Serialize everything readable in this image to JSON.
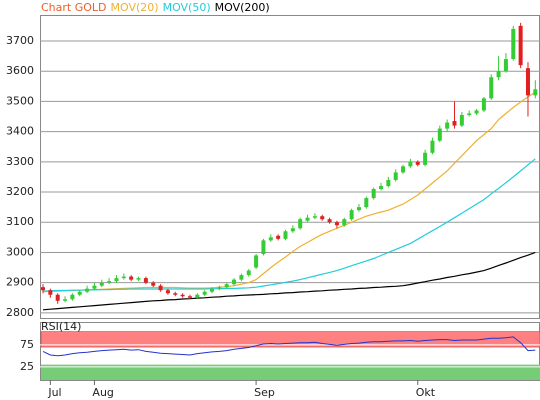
{
  "chart_data": {
    "type": "candlestick",
    "title": "Chart GOLD",
    "title_color": "#e8602c",
    "up_color": "#33cc33",
    "down_color": "#e02020",
    "categories": [
      null,
      "Jul",
      null,
      null,
      null,
      null,
      null,
      "Aug",
      null,
      null,
      null,
      null,
      null,
      null,
      null,
      null,
      null,
      null,
      null,
      null,
      null,
      null,
      null,
      null,
      null,
      null,
      null,
      null,
      null,
      "Sep",
      null,
      null,
      null,
      null,
      null,
      null,
      null,
      null,
      null,
      null,
      null,
      null,
      null,
      null,
      null,
      null,
      null,
      null,
      null,
      null,
      null,
      "Okt",
      null,
      null,
      null,
      null,
      null,
      null,
      null,
      null,
      null,
      null,
      null,
      null,
      null,
      null,
      null,
      null
    ],
    "open": [
      2885,
      2875,
      2860,
      2840,
      2845,
      2860,
      2870,
      2880,
      2890,
      2900,
      2905,
      2915,
      2920,
      2910,
      2915,
      2900,
      2890,
      2875,
      2865,
      2860,
      2855,
      2850,
      2860,
      2870,
      2880,
      2885,
      2895,
      2910,
      2925,
      2950,
      2995,
      3040,
      3055,
      3045,
      3070,
      3080,
      3105,
      3115,
      3120,
      3110,
      3100,
      3090,
      3110,
      3140,
      3150,
      3180,
      3210,
      3220,
      3240,
      3265,
      3285,
      3300,
      3290,
      3330,
      3370,
      3410,
      3435,
      3420,
      3455,
      3460,
      3470,
      3510,
      3580,
      3600,
      3640,
      3750,
      3610,
      3520
    ],
    "high": [
      2895,
      2880,
      2865,
      2855,
      2865,
      2875,
      2890,
      2900,
      2910,
      2915,
      2925,
      2930,
      2925,
      2920,
      2920,
      2905,
      2895,
      2880,
      2870,
      2865,
      2860,
      2865,
      2875,
      2885,
      2890,
      2900,
      2915,
      2930,
      2945,
      2995,
      3045,
      3060,
      3060,
      3075,
      3090,
      3115,
      3125,
      3130,
      3125,
      3115,
      3105,
      3115,
      3145,
      3160,
      3185,
      3215,
      3230,
      3250,
      3275,
      3290,
      3310,
      3305,
      3340,
      3380,
      3420,
      3440,
      3500,
      3465,
      3470,
      3475,
      3515,
      3590,
      3650,
      3660,
      3750,
      3760,
      3630,
      3570
    ],
    "low": [
      2865,
      2850,
      2830,
      2835,
      2840,
      2855,
      2865,
      2875,
      2885,
      2895,
      2900,
      2910,
      2905,
      2905,
      2895,
      2885,
      2870,
      2860,
      2855,
      2850,
      2845,
      2845,
      2855,
      2865,
      2875,
      2880,
      2890,
      2905,
      2920,
      2945,
      2990,
      3035,
      3040,
      3040,
      3065,
      3075,
      3100,
      3110,
      3105,
      3095,
      3080,
      3085,
      3105,
      3135,
      3145,
      3175,
      3205,
      3215,
      3235,
      3260,
      3280,
      3285,
      3285,
      3325,
      3365,
      3400,
      3410,
      3415,
      3450,
      3455,
      3465,
      3505,
      3570,
      3595,
      3635,
      3610,
      3450,
      3510
    ],
    "close": [
      2875,
      2860,
      2840,
      2845,
      2860,
      2870,
      2880,
      2890,
      2900,
      2905,
      2915,
      2920,
      2910,
      2915,
      2900,
      2890,
      2875,
      2865,
      2860,
      2855,
      2850,
      2860,
      2870,
      2880,
      2885,
      2895,
      2910,
      2925,
      2940,
      2990,
      3040,
      3050,
      3045,
      3070,
      3080,
      3110,
      3115,
      3120,
      3110,
      3100,
      3090,
      3110,
      3140,
      3150,
      3180,
      3210,
      3220,
      3240,
      3265,
      3285,
      3300,
      3290,
      3330,
      3370,
      3410,
      3430,
      3420,
      3455,
      3460,
      3470,
      3510,
      3580,
      3600,
      3640,
      3740,
      3620,
      3520,
      3540
    ],
    "series": [
      {
        "name": "MOV(20)",
        "color": "#f0b030",
        "values": [
          2870,
          2871,
          2872,
          2873,
          2874,
          2875,
          2876,
          2877,
          2878,
          2879,
          2880,
          2881,
          2882,
          2883,
          2884,
          2884,
          2884,
          2884,
          2884,
          2883,
          2882,
          2882,
          2882,
          2883,
          2885,
          2887,
          2890,
          2895,
          2900,
          2910,
          2930,
          2950,
          2968,
          2985,
          3003,
          3020,
          3033,
          3047,
          3060,
          3070,
          3080,
          3090,
          3100,
          3110,
          3120,
          3127,
          3134,
          3140,
          3150,
          3160,
          3175,
          3190,
          3210,
          3230,
          3250,
          3270,
          3295,
          3320,
          3345,
          3370,
          3390,
          3410,
          3440,
          3460,
          3480,
          3498,
          3515,
          3530
        ]
      },
      {
        "name": "MOV(50)",
        "color": "#22ccdd",
        "values": [
          2872,
          2873,
          2874,
          2874,
          2875,
          2875,
          2876,
          2876,
          2877,
          2877,
          2878,
          2878,
          2879,
          2879,
          2879,
          2879,
          2879,
          2879,
          2879,
          2879,
          2879,
          2879,
          2879,
          2880,
          2880,
          2881,
          2881,
          2882,
          2883,
          2885,
          2889,
          2893,
          2897,
          2901,
          2905,
          2910,
          2916,
          2922,
          2928,
          2934,
          2940,
          2948,
          2956,
          2964,
          2972,
          2980,
          2990,
          3000,
          3010,
          3020,
          3030,
          3044,
          3058,
          3072,
          3086,
          3100,
          3115,
          3130,
          3145,
          3160,
          3175,
          3194,
          3212,
          3231,
          3250,
          3270,
          3290,
          3310
        ]
      },
      {
        "name": "MOV(200)",
        "color": "#000000",
        "values": [
          2810,
          2812,
          2814,
          2816,
          2818,
          2820,
          2822,
          2824,
          2826,
          2828,
          2830,
          2832,
          2834,
          2836,
          2838,
          2840,
          2841,
          2843,
          2844,
          2846,
          2847,
          2849,
          2850,
          2852,
          2853,
          2855,
          2856,
          2858,
          2859,
          2860,
          2861,
          2863,
          2864,
          2866,
          2867,
          2869,
          2870,
          2872,
          2873,
          2875,
          2876,
          2878,
          2879,
          2881,
          2882,
          2884,
          2885,
          2887,
          2888,
          2890,
          2894,
          2899,
          2903,
          2908,
          2912,
          2917,
          2921,
          2926,
          2930,
          2935,
          2940,
          2948,
          2957,
          2965,
          2974,
          2983,
          2991,
          3000
        ]
      }
    ],
    "ylim": [
      2783,
      3786
    ],
    "yticks": [
      2800,
      2900,
      3000,
      3100,
      3200,
      3300,
      3400,
      3500,
      3600,
      3700
    ],
    "grid": true,
    "rsi": {
      "name": "RSI(14)",
      "color": "#2233cc",
      "values": [
        60,
        52,
        50,
        52,
        55,
        57,
        58,
        60,
        62,
        63,
        64,
        65,
        63,
        64,
        60,
        58,
        56,
        55,
        54,
        53,
        52,
        55,
        57,
        59,
        60,
        62,
        65,
        67,
        69,
        73,
        77,
        78,
        77,
        78,
        79,
        80,
        80,
        81,
        78,
        76,
        74,
        76,
        78,
        79,
        81,
        82,
        82,
        83,
        84,
        84,
        85,
        83,
        85,
        86,
        87,
        87,
        85,
        86,
        86,
        86,
        88,
        90,
        90,
        91,
        93,
        80,
        62,
        63
      ],
      "ylim": [
        -5,
        127
      ],
      "yticks": [
        25,
        75
      ],
      "overbought_band": [
        70,
        105
      ],
      "overbought_color": "#ff8080",
      "oversold_band": [
        -5,
        30
      ],
      "oversold_color": "#77cc77"
    }
  }
}
